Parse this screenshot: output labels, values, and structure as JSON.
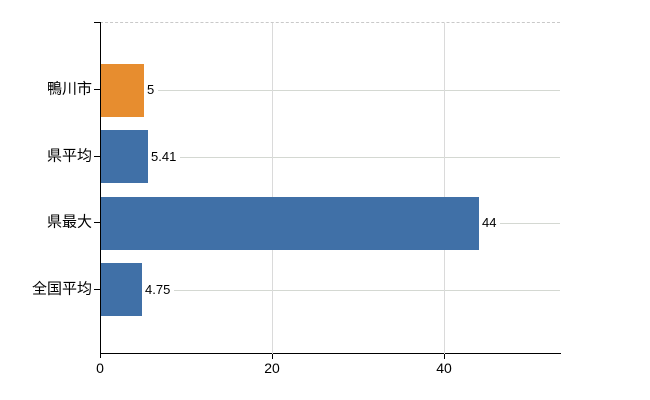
{
  "chart_data": {
    "type": "bar",
    "orientation": "horizontal",
    "title": "",
    "categories": [
      "鴨川市",
      "県平均",
      "県最大",
      "全国平均"
    ],
    "values": [
      5,
      5.41,
      44,
      4.75
    ],
    "value_labels": [
      "5",
      "5.41",
      "44",
      "4.75"
    ],
    "bar_colors": [
      "#e78d2f",
      "#4070a7",
      "#4070a7",
      "#4070a7"
    ],
    "highlight_category": "鴨川市",
    "x_tick_labels": [
      "0",
      "20",
      "40"
    ],
    "x_tick_values": [
      0,
      20,
      40
    ],
    "xlim": [
      0,
      53.5
    ],
    "grid": true,
    "legend": false,
    "colors": {
      "bar_blue": "#4070a7",
      "bar_orange": "#e78d2f",
      "leader_line": "#d4d8d2",
      "gridline": "#dadada",
      "axis": "#000000",
      "background": "#ffffff"
    }
  }
}
